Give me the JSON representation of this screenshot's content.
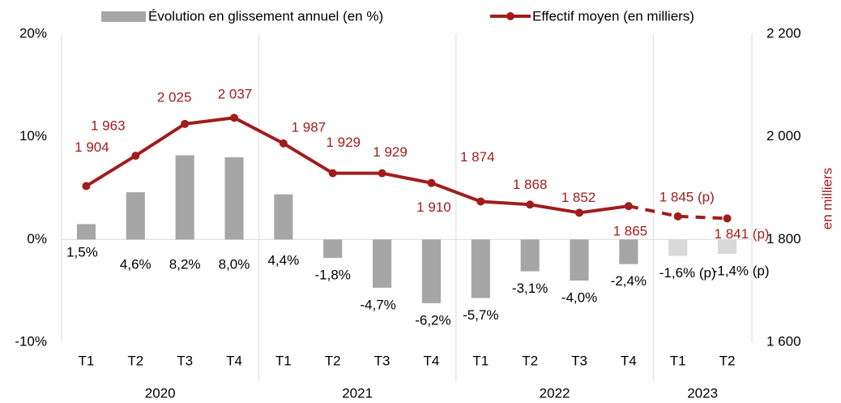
{
  "chart_data": {
    "type": "bar_line",
    "categories": [
      "T1",
      "T2",
      "T3",
      "T4",
      "T1",
      "T2",
      "T3",
      "T4",
      "T1",
      "T2",
      "T3",
      "T4",
      "T1",
      "T2"
    ],
    "category_groups": [
      "2020",
      "2020",
      "2020",
      "2020",
      "2021",
      "2021",
      "2021",
      "2021",
      "2022",
      "2022",
      "2022",
      "2022",
      "2023",
      "2023"
    ],
    "series": [
      {
        "name": "Évolution en glissement annuel (en %)",
        "type": "bar",
        "color": "#a6a6a6",
        "colors": [
          "#a6a6a6",
          "#a6a6a6",
          "#a6a6a6",
          "#a6a6a6",
          "#a6a6a6",
          "#a6a6a6",
          "#a6a6a6",
          "#a6a6a6",
          "#a6a6a6",
          "#a6a6a6",
          "#a6a6a6",
          "#a6a6a6",
          "#d9d9d9",
          "#d9d9d9"
        ],
        "values": [
          1.5,
          4.6,
          8.2,
          8.0,
          4.4,
          -1.8,
          -4.7,
          -6.2,
          -5.7,
          -3.1,
          -4.0,
          -2.4,
          -1.6,
          -1.4
        ],
        "value_labels": [
          "1,5%",
          "4,6%",
          "8,2%",
          "8,0%",
          "4,4%",
          "-1,8%",
          "-4,7%",
          "-6,2%",
          "-5,7%",
          "-3,1%",
          "-4,0%",
          "-2,4%",
          "-1,6% (p)",
          "-1,4% (p)"
        ]
      },
      {
        "name": "Effectif moyen (en milliers)",
        "type": "line",
        "axis": "y2",
        "color": "#a01d1d",
        "values": [
          1904,
          1963,
          2025,
          2037,
          1987,
          1929,
          1929,
          1910,
          1874,
          1868,
          1852,
          1865,
          1845,
          1841
        ],
        "value_labels": [
          "1 904",
          "1 963",
          "2 025",
          "2 037",
          "1 987",
          "1 929",
          "1 929",
          "1 910",
          "1 874",
          "1 868",
          "1 852",
          "1 865",
          "1 845 (p)",
          "1 841 (p)"
        ]
      }
    ],
    "ylim": [
      -10,
      20
    ],
    "yticks": [
      {
        "value": -10,
        "label": "-10%"
      },
      {
        "value": 0,
        "label": "0%"
      },
      {
        "value": 10,
        "label": "10%"
      },
      {
        "value": 20,
        "label": "20%"
      }
    ],
    "y2lim": [
      1600,
      2200
    ],
    "y2ticks": [
      {
        "value": 1600,
        "label": "1 600"
      },
      {
        "value": 1800,
        "label": "1 800"
      },
      {
        "value": 2000,
        "label": "2 000"
      },
      {
        "value": 2200,
        "label": "2 200"
      }
    ],
    "y2label": "en milliers"
  }
}
